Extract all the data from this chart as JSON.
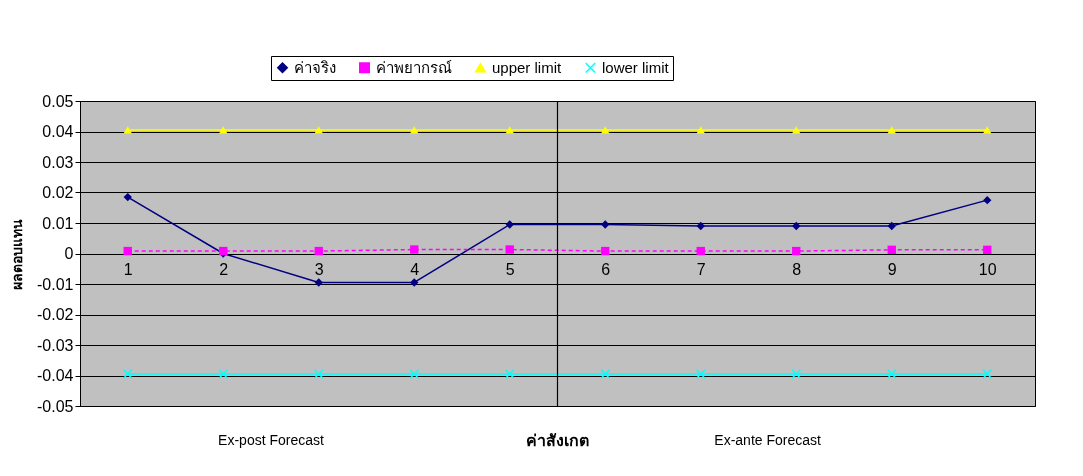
{
  "chart_data": {
    "type": "line",
    "xlabel": "ค่าสังเกต",
    "ylabel": "ผลตอบแทน",
    "categories": [
      "1",
      "2",
      "3",
      "4",
      "5",
      "6",
      "7",
      "8",
      "9",
      "10"
    ],
    "series": [
      {
        "name": "ค่าจริง",
        "color": "#000080",
        "marker": "diamond",
        "line_style": "solid",
        "values": [
          0.0185,
          0.0,
          -0.0095,
          -0.0095,
          0.0095,
          0.0095,
          0.009,
          0.009,
          0.009,
          0.0175
        ]
      },
      {
        "name": "ค่าพยากรณ์",
        "color": "#ff00ff",
        "marker": "square",
        "line_style": "dashed",
        "values": [
          0.0008,
          0.0008,
          0.0008,
          0.0013,
          0.0013,
          0.0008,
          0.0008,
          0.0008,
          0.0012,
          0.0012
        ]
      },
      {
        "name": "upper limit",
        "color": "#ffff00",
        "marker": "triangle",
        "line_style": "solid",
        "values": [
          0.0405,
          0.0405,
          0.0405,
          0.0405,
          0.0405,
          0.0405,
          0.0405,
          0.0405,
          0.0405,
          0.0405
        ]
      },
      {
        "name": "lower limit",
        "color": "#00ffff",
        "marker": "cross",
        "line_style": "solid",
        "values": [
          -0.0395,
          -0.0395,
          -0.0395,
          -0.0395,
          -0.0395,
          -0.0395,
          -0.0395,
          -0.0395,
          -0.0395,
          -0.0395
        ]
      }
    ],
    "ylim": [
      -0.05,
      0.05
    ],
    "yticks": [
      -0.05,
      -0.04,
      -0.03,
      -0.02,
      -0.01,
      0,
      0.01,
      0.02,
      0.03,
      0.04,
      0.05
    ],
    "grid": "y",
    "legend": "top",
    "annotations": [
      "Ex-post Forecast",
      "Ex-ante Forecast"
    ]
  }
}
